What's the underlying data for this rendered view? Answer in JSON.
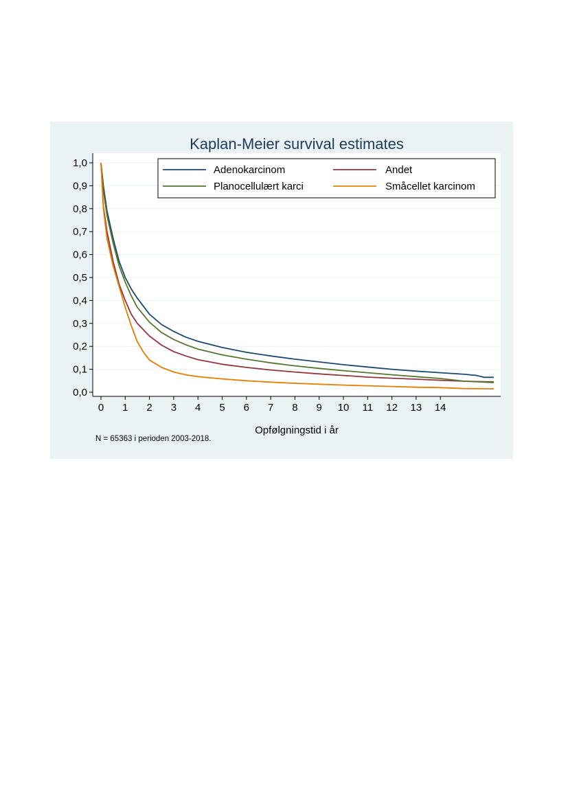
{
  "note": "N = 65363 i perioden 2003-2018.",
  "chart_data": {
    "type": "line",
    "title": "Kaplan-Meier survival estimates",
    "xlabel": "Opfølgningstid i år",
    "ylabel": "",
    "xlim": [
      0,
      16.3
    ],
    "ylim": [
      0,
      1
    ],
    "xticks": [
      0,
      1,
      2,
      3,
      4,
      5,
      6,
      7,
      8,
      9,
      10,
      11,
      12,
      13,
      14
    ],
    "xtick_labels": [
      "0",
      "1",
      "2",
      "3",
      "4",
      "5",
      "6",
      "7",
      "8",
      "9",
      "10",
      "11",
      "12",
      "13",
      "14"
    ],
    "yticks": [
      0,
      0.1,
      0.2,
      0.3,
      0.4,
      0.5,
      0.6,
      0.7,
      0.8,
      0.9,
      1.0
    ],
    "ytick_labels": [
      "0,0",
      "0,1",
      "0,2",
      "0,3",
      "0,4",
      "0,5",
      "0,6",
      "0,7",
      "0,8",
      "0,9",
      "1,0"
    ],
    "grid": true,
    "legend_position": "top-right",
    "series": [
      {
        "name": "Adenokarcinom",
        "color": "#1a476f",
        "x": [
          0,
          0.1,
          0.25,
          0.5,
          0.75,
          1,
          1.25,
          1.5,
          2,
          2.5,
          3,
          3.5,
          4,
          5,
          6,
          7,
          8,
          9,
          10,
          11,
          12,
          13,
          14,
          15,
          15.5,
          15.8,
          16.2
        ],
        "y": [
          1.0,
          0.9,
          0.79,
          0.67,
          0.57,
          0.5,
          0.45,
          0.41,
          0.34,
          0.295,
          0.265,
          0.24,
          0.222,
          0.195,
          0.174,
          0.158,
          0.144,
          0.132,
          0.12,
          0.11,
          0.1,
          0.092,
          0.085,
          0.078,
          0.073,
          0.065,
          0.065
        ]
      },
      {
        "name": "Andet",
        "color": "#90353b",
        "x": [
          0,
          0.1,
          0.25,
          0.5,
          0.75,
          1,
          1.25,
          1.5,
          2,
          2.5,
          3,
          3.5,
          4,
          5,
          6,
          7,
          8,
          9,
          10,
          11,
          12,
          13,
          14,
          15,
          16.2
        ],
        "y": [
          1.0,
          0.81,
          0.7,
          0.57,
          0.47,
          0.4,
          0.34,
          0.3,
          0.245,
          0.205,
          0.177,
          0.158,
          0.142,
          0.122,
          0.108,
          0.097,
          0.088,
          0.08,
          0.073,
          0.066,
          0.061,
          0.057,
          0.052,
          0.048,
          0.045
        ]
      },
      {
        "name": "Planocellulært karci",
        "color": "#55752f",
        "x": [
          0,
          0.1,
          0.25,
          0.5,
          0.75,
          1,
          1.25,
          1.5,
          2,
          2.5,
          3,
          3.5,
          4,
          5,
          6,
          7,
          8,
          9,
          10,
          11,
          12,
          13,
          14,
          15,
          16.2
        ],
        "y": [
          1.0,
          0.88,
          0.77,
          0.65,
          0.55,
          0.48,
          0.42,
          0.37,
          0.305,
          0.26,
          0.23,
          0.207,
          0.188,
          0.163,
          0.144,
          0.128,
          0.115,
          0.104,
          0.094,
          0.085,
          0.076,
          0.068,
          0.06,
          0.048,
          0.042
        ]
      },
      {
        "name": "Småcellet karcinom",
        "color": "#e37e00",
        "x": [
          0,
          0.1,
          0.25,
          0.5,
          0.75,
          1,
          1.25,
          1.5,
          1.75,
          2,
          2.5,
          3,
          3.5,
          4,
          5,
          6,
          7,
          8,
          9,
          10,
          11,
          12,
          13,
          14,
          15,
          16.2
        ],
        "y": [
          1.0,
          0.8,
          0.67,
          0.55,
          0.46,
          0.37,
          0.29,
          0.22,
          0.175,
          0.14,
          0.108,
          0.088,
          0.076,
          0.068,
          0.058,
          0.05,
          0.044,
          0.039,
          0.035,
          0.031,
          0.028,
          0.025,
          0.022,
          0.02,
          0.016,
          0.015
        ]
      }
    ]
  }
}
